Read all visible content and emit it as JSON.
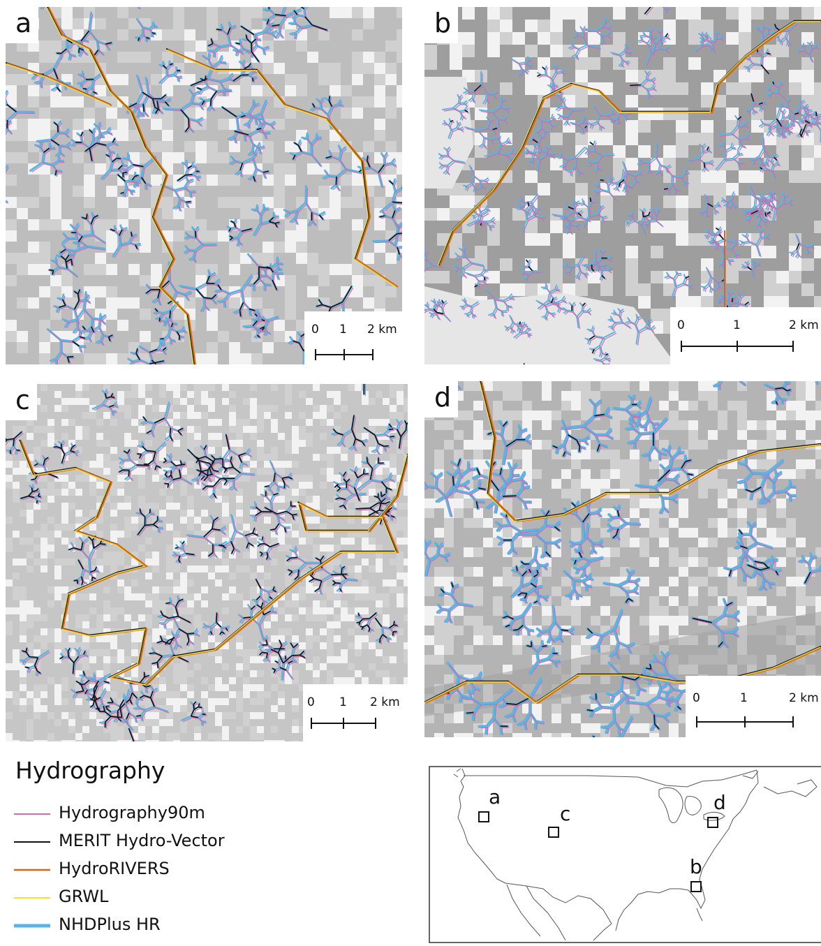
{
  "panels": [
    {
      "id": "a",
      "label": "a",
      "scale": {
        "ticks": [
          "0",
          "1",
          "2 km"
        ]
      }
    },
    {
      "id": "b",
      "label": "b",
      "scale": {
        "ticks": [
          "0",
          "1",
          "2 km"
        ]
      }
    },
    {
      "id": "c",
      "label": "c",
      "scale": {
        "ticks": [
          "0",
          "1",
          "2 km"
        ]
      }
    },
    {
      "id": "d",
      "label": "d",
      "scale": {
        "ticks": [
          "0",
          "1",
          "2 km"
        ]
      }
    }
  ],
  "legend": {
    "title": "Hydrography",
    "items": [
      {
        "label": "Hydrography90m",
        "color": "#c86fa8"
      },
      {
        "label": "MERIT Hydro-Vector",
        "color": "#111111"
      },
      {
        "label": "HydroRIVERS",
        "color": "#d2691e"
      },
      {
        "label": "GRWL",
        "color": "#f2e13a"
      },
      {
        "label": "NHDPlus HR",
        "color": "#5ab4e5"
      }
    ]
  },
  "inset_map": {
    "labels": [
      "a",
      "b",
      "c",
      "d"
    ]
  },
  "colors": {
    "terrain_dark": "#a9a9a9",
    "terrain_light": "#f2f2f2",
    "background_light": "#e6e6e6"
  }
}
